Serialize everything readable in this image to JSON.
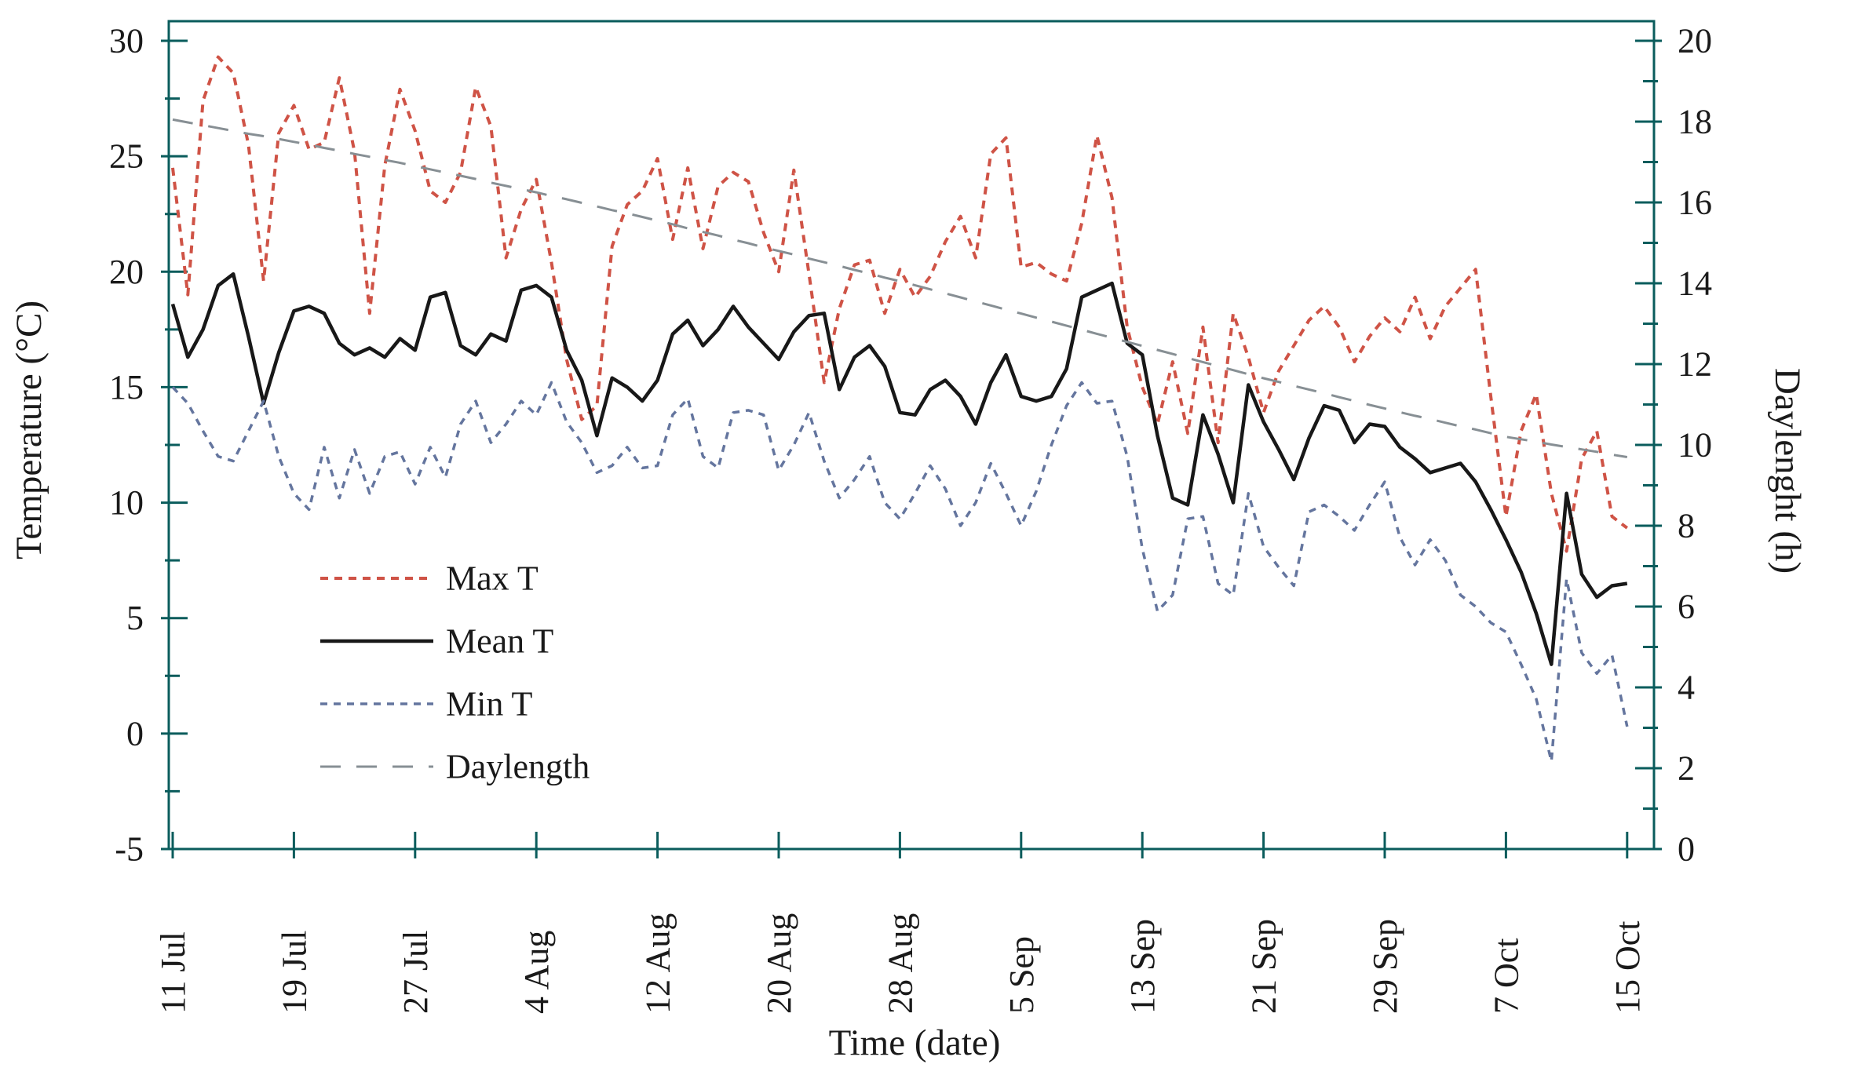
{
  "figure": {
    "background": "#ffffff",
    "frame_color": "#0a5c5c",
    "text_color": "#1a1a1a",
    "title_left_axis": "Temperature (°C)",
    "title_right_axis": "Daylenght (h)",
    "title_x_axis": "Time (date)"
  },
  "legend": {
    "items": [
      {
        "label": "Max T",
        "color": "#cf5346",
        "dash": "10 8",
        "width": 4
      },
      {
        "label": "Mean T",
        "color": "#181818",
        "dash": "none",
        "width": 4.5
      },
      {
        "label": "Min T",
        "color": "#64759e",
        "dash": "9 8",
        "width": 3.5
      },
      {
        "label": "Daylength",
        "color": "#878f94",
        "dash": "26 20",
        "width": 3
      }
    ]
  },
  "chart_data": {
    "type": "line",
    "x_axis": {
      "label": "Time (date)",
      "start_date": "11 Jul",
      "end_date": "15 Oct",
      "step_days": 1,
      "n_points": 97,
      "tick_labels": [
        "11 Jul",
        "19 Jul",
        "27 Jul",
        "4 Aug",
        "12 Aug",
        "20 Aug",
        "28 Aug",
        "5 Sep",
        "13 Sep",
        "21 Sep",
        "29 Sep",
        "7 Oct",
        "15 Oct"
      ],
      "tick_day_index": [
        0,
        8,
        16,
        24,
        32,
        40,
        48,
        56,
        64,
        72,
        80,
        88,
        96
      ]
    },
    "y_left": {
      "label": "Temperature (°C)",
      "min": -5,
      "max": 30,
      "major_step": 5,
      "minor_step": 2.5,
      "tick_labels": [
        "30",
        "25",
        "20",
        "15",
        "10",
        "5",
        "0",
        "-5"
      ]
    },
    "y_right": {
      "label": "Daylenght (h)",
      "min": 0,
      "max": 20,
      "major_step": 2,
      "minor_step": 1,
      "tick_labels": [
        "20",
        "18",
        "16",
        "14",
        "12",
        "10",
        "8",
        "6",
        "4",
        "2",
        "0"
      ]
    },
    "grid": "off",
    "legend_position": "inside-left-middle",
    "series": [
      {
        "name": "Max T",
        "axis": "left",
        "color": "#cf5346",
        "dash": "10 8",
        "width": 4,
        "values": [
          24.5,
          19.0,
          27.4,
          29.3,
          28.6,
          25.5,
          19.6,
          26.0,
          27.2,
          25.3,
          25.6,
          28.4,
          25.2,
          18.2,
          24.6,
          27.9,
          26.1,
          23.5,
          23.0,
          24.3,
          28.0,
          26.3,
          20.6,
          22.7,
          24.0,
          20.4,
          16.2,
          13.6,
          14.2,
          21.1,
          22.9,
          23.5,
          24.9,
          21.4,
          24.5,
          21.0,
          23.7,
          24.3,
          23.9,
          21.7,
          20.0,
          24.4,
          19.9,
          15.2,
          18.4,
          20.3,
          20.5,
          18.2,
          20.1,
          18.9,
          19.8,
          21.3,
          22.4,
          20.6,
          25.1,
          25.8,
          20.2,
          20.4,
          19.9,
          19.6,
          22.1,
          25.9,
          23.2,
          17.6,
          15.0,
          13.4,
          16.1,
          13.0,
          17.6,
          12.6,
          18.2,
          16.3,
          13.9,
          15.7,
          16.8,
          17.9,
          18.5,
          17.6,
          16.1,
          17.2,
          18.0,
          17.4,
          18.9,
          17.1,
          18.5,
          19.3,
          20.1,
          14.6,
          9.4,
          13.1,
          14.7,
          10.4,
          7.9,
          11.9,
          13.1,
          9.4,
          8.9
        ]
      },
      {
        "name": "Mean T",
        "axis": "left",
        "color": "#181818",
        "dash": "none",
        "width": 4.5,
        "values": [
          18.6,
          16.3,
          17.5,
          19.4,
          19.9,
          17.2,
          14.3,
          16.5,
          18.3,
          18.5,
          18.2,
          16.9,
          16.4,
          16.7,
          16.3,
          17.1,
          16.6,
          18.9,
          19.1,
          16.8,
          16.4,
          17.3,
          17.0,
          19.2,
          19.4,
          18.9,
          16.6,
          15.3,
          12.9,
          15.4,
          15.0,
          14.4,
          15.3,
          17.3,
          17.9,
          16.8,
          17.5,
          18.5,
          17.6,
          16.9,
          16.2,
          17.4,
          18.1,
          18.2,
          14.9,
          16.3,
          16.8,
          15.9,
          13.9,
          13.8,
          14.9,
          15.3,
          14.6,
          13.4,
          15.2,
          16.4,
          14.6,
          14.4,
          14.6,
          15.8,
          18.9,
          19.2,
          19.5,
          16.9,
          16.4,
          12.9,
          10.2,
          9.9,
          13.8,
          12.1,
          10.0,
          15.1,
          13.5,
          12.3,
          11.0,
          12.8,
          14.2,
          14.0,
          12.6,
          13.4,
          13.3,
          12.4,
          11.9,
          11.3,
          11.5,
          11.7,
          10.9,
          9.7,
          8.4,
          7.0,
          5.2,
          3.0,
          10.4,
          6.9,
          5.9,
          6.4,
          6.5
        ]
      },
      {
        "name": "Min T",
        "axis": "left",
        "color": "#64759e",
        "dash": "9 8",
        "width": 3.5,
        "values": [
          15.0,
          14.3,
          13.1,
          12.0,
          11.8,
          13.1,
          14.4,
          12.0,
          10.4,
          9.7,
          12.4,
          10.2,
          12.3,
          10.4,
          12.0,
          12.2,
          10.8,
          12.4,
          11.1,
          13.4,
          14.4,
          12.6,
          13.4,
          14.4,
          13.8,
          15.2,
          13.5,
          12.6,
          11.3,
          11.6,
          12.4,
          11.5,
          11.6,
          13.8,
          14.5,
          12.0,
          11.5,
          13.9,
          14.0,
          13.8,
          11.4,
          12.5,
          13.9,
          11.8,
          10.2,
          11.0,
          12.0,
          10.0,
          9.3,
          10.4,
          11.6,
          10.6,
          9.0,
          10.0,
          11.7,
          10.4,
          9.0,
          10.5,
          12.5,
          14.2,
          15.2,
          14.3,
          14.4,
          12.0,
          8.0,
          5.3,
          6.0,
          9.3,
          9.4,
          6.5,
          6.0,
          10.4,
          8.1,
          7.2,
          6.4,
          9.6,
          9.9,
          9.4,
          8.8,
          9.9,
          10.9,
          8.5,
          7.3,
          8.4,
          7.5,
          6.0,
          5.5,
          4.8,
          4.4,
          3.0,
          1.5,
          -1.2,
          6.7,
          3.5,
          2.6,
          3.4,
          0.3
        ]
      },
      {
        "name": "Daylength",
        "axis": "right",
        "color": "#878f94",
        "dash": "26 20",
        "width": 3,
        "values": [
          18.05,
          17.98,
          17.91,
          17.84,
          17.77,
          17.7,
          17.64,
          17.57,
          17.5,
          17.43,
          17.35,
          17.28,
          17.2,
          17.13,
          17.05,
          16.98,
          16.9,
          16.82,
          16.74,
          16.66,
          16.58,
          16.49,
          16.41,
          16.33,
          16.25,
          16.16,
          16.08,
          15.99,
          15.9,
          15.81,
          15.73,
          15.64,
          15.55,
          15.46,
          15.36,
          15.27,
          15.18,
          15.08,
          14.99,
          14.89,
          14.8,
          14.71,
          14.61,
          14.52,
          14.43,
          14.33,
          14.24,
          14.14,
          14.05,
          13.95,
          13.85,
          13.75,
          13.65,
          13.55,
          13.45,
          13.35,
          13.25,
          13.15,
          13.05,
          12.95,
          12.85,
          12.75,
          12.65,
          12.55,
          12.45,
          12.35,
          12.25,
          12.15,
          12.05,
          11.95,
          11.85,
          11.75,
          11.65,
          11.56,
          11.46,
          11.37,
          11.28,
          11.18,
          11.09,
          10.99,
          10.9,
          10.81,
          10.72,
          10.64,
          10.55,
          10.46,
          10.38,
          10.29,
          10.2,
          10.14,
          10.08,
          10.01,
          9.95,
          9.89,
          9.83,
          9.76,
          9.7
        ]
      }
    ]
  }
}
